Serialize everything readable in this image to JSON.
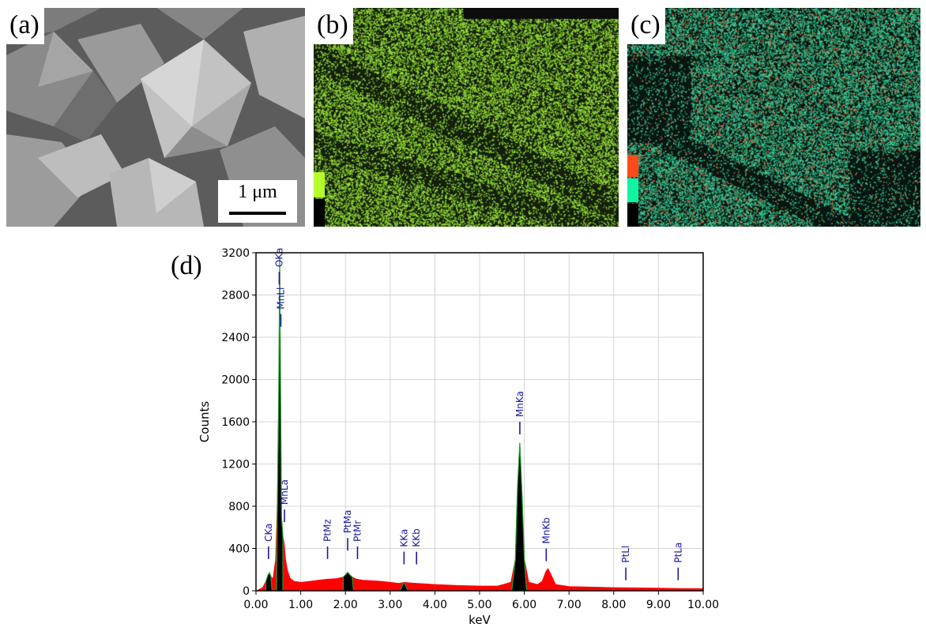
{
  "panels": {
    "a": {
      "label": "(a)",
      "scale_bar": "1 μm"
    },
    "b": {
      "label": "(b)",
      "colors": [
        "#b6ff2a",
        "#000000"
      ]
    },
    "c": {
      "label": "(c)",
      "colors": [
        "#ff4a1a",
        "#12f3a1",
        "#000000"
      ]
    }
  },
  "chart_label": "(d)",
  "chart_data": {
    "type": "area",
    "xlabel": "keV",
    "ylabel": "Counts",
    "xlim": [
      0,
      10
    ],
    "ylim": [
      0,
      3200
    ],
    "x_ticks": [
      "0.00",
      "1.00",
      "2.00",
      "3.00",
      "4.00",
      "5.00",
      "6.00",
      "7.00",
      "8.00",
      "9.00",
      "10.00"
    ],
    "y_ticks": [
      "0",
      "400",
      "800",
      "1200",
      "1600",
      "2000",
      "2400",
      "2800",
      "3200"
    ],
    "grid": true,
    "spectrum": {
      "x": [
        0.05,
        0.15,
        0.22,
        0.27,
        0.3,
        0.33,
        0.38,
        0.44,
        0.48,
        0.51,
        0.53,
        0.55,
        0.57,
        0.6,
        0.63,
        0.66,
        0.7,
        0.76,
        0.85,
        1.0,
        1.2,
        1.4,
        1.6,
        1.8,
        1.95,
        2.0,
        2.05,
        2.1,
        2.15,
        2.25,
        2.4,
        2.6,
        2.8,
        3.0,
        3.2,
        3.31,
        3.45,
        3.6,
        3.8,
        4.0,
        4.5,
        5.0,
        5.4,
        5.7,
        5.8,
        5.85,
        5.9,
        5.95,
        6.0,
        6.1,
        6.3,
        6.4,
        6.48,
        6.53,
        6.6,
        6.7,
        7.0,
        7.5,
        8.0,
        8.5,
        9.0,
        9.5,
        10.0
      ],
      "y": [
        10,
        30,
        90,
        150,
        170,
        140,
        110,
        300,
        900,
        1950,
        3150,
        1900,
        700,
        520,
        450,
        300,
        200,
        120,
        90,
        80,
        90,
        100,
        110,
        115,
        130,
        150,
        175,
        150,
        130,
        110,
        100,
        95,
        90,
        80,
        70,
        80,
        75,
        70,
        65,
        60,
        50,
        45,
        45,
        80,
        300,
        1000,
        1400,
        900,
        300,
        80,
        60,
        90,
        180,
        210,
        150,
        60,
        40,
        35,
        30,
        28,
        25,
        22,
        20
      ]
    },
    "peak_markers": [
      {
        "label": "CKa",
        "x": 0.28,
        "y": 300
      },
      {
        "label": "OKa",
        "x": 0.52,
        "y": 2900
      },
      {
        "label": "MnLl",
        "x": 0.556,
        "y": 2500
      },
      {
        "label": "MnLa",
        "x": 0.637,
        "y": 650
      },
      {
        "label": "PtMz",
        "x": 1.6,
        "y": 300
      },
      {
        "label": "PtMa",
        "x": 2.05,
        "y": 380
      },
      {
        "label": "PtMr",
        "x": 2.27,
        "y": 300
      },
      {
        "label": "KKa",
        "x": 3.31,
        "y": 250
      },
      {
        "label": "KKb",
        "x": 3.59,
        "y": 250
      },
      {
        "label": "MnKa",
        "x": 5.9,
        "y": 1480
      },
      {
        "label": "MnKb",
        "x": 6.49,
        "y": 280
      },
      {
        "label": "PtLl",
        "x": 8.27,
        "y": 100
      },
      {
        "label": "PtLa",
        "x": 9.44,
        "y": 100
      }
    ],
    "colors": {
      "bremsstrahlung": "#ff0000",
      "peak_fill": "#000000",
      "peak_edge": "#1e9e2e",
      "markers": "#1a1aa0"
    }
  }
}
